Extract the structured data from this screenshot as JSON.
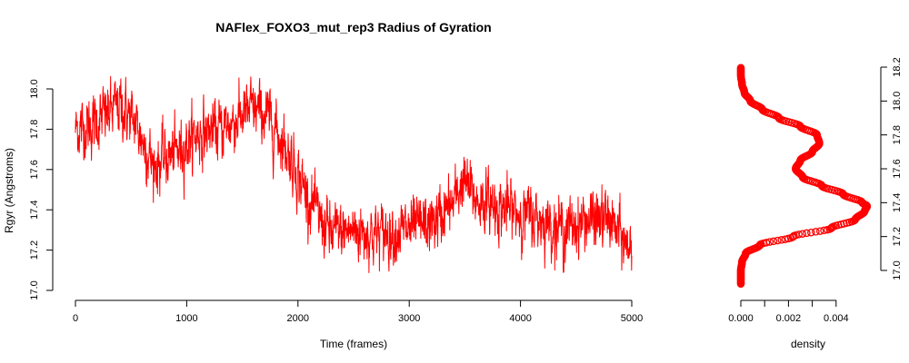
{
  "chart_data": [
    {
      "type": "line",
      "title": "NAFlex_FOXO3_mut_rep3 Radius of Gyration",
      "xlabel": "Time (frames)",
      "ylabel": "Rgyr (Angstroms)",
      "xlim": [
        0,
        5000
      ],
      "ylim": [
        17.0,
        18.0
      ],
      "x_ticks": [
        "0",
        "1000",
        "2000",
        "3000",
        "4000",
        "5000"
      ],
      "y_ticks": [
        "17.0",
        "17.2",
        "17.4",
        "17.6",
        "17.8",
        "18.0"
      ],
      "grid": false,
      "legend": "none",
      "series_color": "#ff0000",
      "frames": 5000,
      "trend": {
        "x": [
          0,
          150,
          400,
          550,
          700,
          900,
          1100,
          1300,
          1450,
          1600,
          1750,
          1900,
          2000,
          2100,
          2200,
          2300,
          2500,
          2700,
          3000,
          3200,
          3400,
          3480,
          3600,
          3800,
          4000,
          4200,
          4400,
          4600,
          4800,
          4950,
          5000
        ],
        "y": [
          17.8,
          17.82,
          17.92,
          17.82,
          17.62,
          17.68,
          17.78,
          17.8,
          17.85,
          17.9,
          17.85,
          17.7,
          17.58,
          17.45,
          17.35,
          17.28,
          17.3,
          17.28,
          17.3,
          17.33,
          17.43,
          17.55,
          17.45,
          17.42,
          17.38,
          17.35,
          17.3,
          17.35,
          17.35,
          17.22,
          17.25
        ]
      }
    },
    {
      "type": "line",
      "xlabel": "density",
      "xlim": [
        0,
        0.005
      ],
      "ylim": [
        17.0,
        18.2
      ],
      "x_ticks": [
        "0.000",
        "0.002",
        "0.004"
      ],
      "y_ticks": [
        "17.0",
        "17.2",
        "17.4",
        "17.6",
        "17.8",
        "18.0",
        "18.2"
      ],
      "series_color": "#ff0000",
      "rgyr": [
        16.92,
        17.0,
        17.05,
        17.1,
        17.15,
        17.2,
        17.25,
        17.3,
        17.35,
        17.38,
        17.4,
        17.45,
        17.5,
        17.55,
        17.6,
        17.65,
        17.7,
        17.75,
        17.8,
        17.85,
        17.9,
        17.95,
        18.0,
        18.05,
        18.1,
        18.15,
        18.2
      ],
      "density": [
        0.0,
        0.0,
        5e-05,
        0.0002,
        0.0008,
        0.0022,
        0.0038,
        0.0048,
        0.0052,
        0.0053,
        0.0051,
        0.0043,
        0.0034,
        0.0026,
        0.0023,
        0.0025,
        0.003,
        0.0033,
        0.0032,
        0.0025,
        0.0016,
        0.0009,
        0.0004,
        0.00015,
        5e-05,
        0.0,
        0.0
      ]
    }
  ]
}
